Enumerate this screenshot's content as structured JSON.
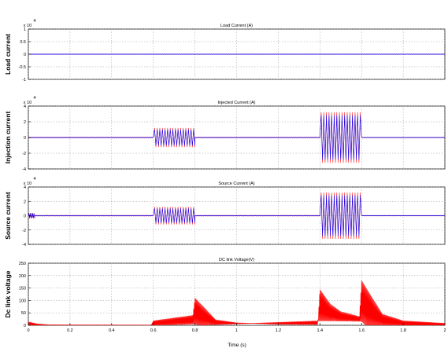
{
  "x_axis_label": "Time (s)",
  "chart_data": [
    {
      "type": "line",
      "title": "Load Current (A)",
      "ylabel": "Load current",
      "exponent_label": "x 10",
      "exponent_power": "4",
      "xlim": [
        0,
        2
      ],
      "ylim": [
        -1,
        1
      ],
      "yticks": [
        "-1",
        "-0.5",
        "0",
        "0.5",
        "1"
      ],
      "xticks": [],
      "grid": true,
      "series": [
        {
          "name": "",
          "color": "#ff0000",
          "kind": "oscillation",
          "segments": [
            {
              "from": 0.0,
              "to": 0.006,
              "amp": 0.45
            },
            {
              "from": 0.006,
              "to": 2.0,
              "amp": 0.01
            }
          ]
        },
        {
          "name": "",
          "color": "#0000ff",
          "kind": "oscillation",
          "segments": [
            {
              "from": 0.0,
              "to": 0.006,
              "amp": 0.5
            },
            {
              "from": 0.006,
              "to": 2.0,
              "amp": 0.012
            }
          ]
        }
      ]
    },
    {
      "type": "line",
      "title": "Injected Current (A)",
      "ylabel": "Injection current",
      "exponent_label": "x 10",
      "exponent_power": "4",
      "xlim": [
        0,
        2
      ],
      "ylim": [
        -4,
        4
      ],
      "yticks": [
        "-4",
        "-2",
        "0",
        "2",
        "4"
      ],
      "xticks": [],
      "grid": true,
      "series": [
        {
          "name": "",
          "color": "#ff0000",
          "kind": "oscillation",
          "segments": [
            {
              "from": 0.0,
              "to": 0.6,
              "amp": 0.06
            },
            {
              "from": 0.6,
              "to": 0.8,
              "amp": 1.2
            },
            {
              "from": 0.8,
              "to": 1.4,
              "amp": 0.06
            },
            {
              "from": 1.4,
              "to": 1.6,
              "amp": 3.2
            },
            {
              "from": 1.6,
              "to": 2.0,
              "amp": 0.04
            }
          ]
        },
        {
          "name": "",
          "color": "#0000ff",
          "kind": "oscillation",
          "segments": [
            {
              "from": 0.0,
              "to": 0.6,
              "amp": 0.05
            },
            {
              "from": 0.6,
              "to": 0.8,
              "amp": 1.0
            },
            {
              "from": 0.8,
              "to": 1.4,
              "amp": 0.05
            },
            {
              "from": 1.4,
              "to": 1.6,
              "amp": 2.8
            },
            {
              "from": 1.6,
              "to": 2.0,
              "amp": 0.04
            }
          ]
        }
      ]
    },
    {
      "type": "line",
      "title": "Source Current (A)",
      "ylabel": "Source current",
      "exponent_label": "x 10",
      "exponent_power": "4",
      "xlim": [
        0,
        2
      ],
      "ylim": [
        -4,
        4
      ],
      "yticks": [
        "-4",
        "-2",
        "0",
        "2",
        "4"
      ],
      "xticks": [],
      "grid": true,
      "series": [
        {
          "name": "",
          "color": "#ff0000",
          "kind": "oscillation",
          "segments": [
            {
              "from": 0.0,
              "to": 0.03,
              "amp": 0.35
            },
            {
              "from": 0.03,
              "to": 0.6,
              "amp": 0.06
            },
            {
              "from": 0.6,
              "to": 0.8,
              "amp": 1.2
            },
            {
              "from": 0.8,
              "to": 1.4,
              "amp": 0.06
            },
            {
              "from": 1.4,
              "to": 1.6,
              "amp": 3.2
            },
            {
              "from": 1.6,
              "to": 2.0,
              "amp": 0.05
            }
          ]
        },
        {
          "name": "",
          "color": "#0000ff",
          "kind": "oscillation",
          "segments": [
            {
              "from": 0.0,
              "to": 0.03,
              "amp": 0.3
            },
            {
              "from": 0.03,
              "to": 0.6,
              "amp": 0.05
            },
            {
              "from": 0.6,
              "to": 0.8,
              "amp": 1.0
            },
            {
              "from": 0.8,
              "to": 1.4,
              "amp": 0.05
            },
            {
              "from": 1.4,
              "to": 1.6,
              "amp": 2.8
            },
            {
              "from": 1.6,
              "to": 2.0,
              "amp": 0.04
            }
          ]
        }
      ]
    },
    {
      "type": "line",
      "title": "DC link Voltage(V)",
      "ylabel": "Dc link voltage",
      "exponent_label": "",
      "exponent_power": "",
      "xlim": [
        0,
        2
      ],
      "ylim": [
        0,
        250
      ],
      "yticks": [
        "0",
        "50",
        "100",
        "150",
        "200",
        "250"
      ],
      "xticks": [
        "0",
        "0.2",
        "0.4",
        "0.6",
        "0.8",
        "1",
        "1.2",
        "1.4",
        "1.6",
        "1.8",
        "2"
      ],
      "grid": true,
      "series": [
        {
          "name": "",
          "color": "#ff0000",
          "kind": "dc",
          "envelope": [
            [
              0,
              14
            ],
            [
              0.04,
              6
            ],
            [
              0.1,
              2
            ],
            [
              0.59,
              1
            ],
            [
              0.6,
              18
            ],
            [
              0.79,
              40
            ],
            [
              0.8,
              110
            ],
            [
              0.9,
              22
            ],
            [
              1.0,
              10
            ],
            [
              1.2,
              4
            ],
            [
              1.39,
              3
            ],
            [
              1.4,
              145
            ],
            [
              1.45,
              85
            ],
            [
              1.5,
              55
            ],
            [
              1.59,
              35
            ],
            [
              1.6,
              180
            ],
            [
              1.7,
              45
            ],
            [
              1.8,
              18
            ],
            [
              2.0,
              8
            ]
          ],
          "floor": [
            [
              0,
              0
            ],
            [
              0.6,
              0
            ],
            [
              0.8,
              5
            ],
            [
              0.82,
              0
            ],
            [
              1.4,
              18
            ],
            [
              1.6,
              16
            ],
            [
              1.62,
              0
            ],
            [
              2.0,
              0
            ]
          ]
        }
      ]
    }
  ]
}
